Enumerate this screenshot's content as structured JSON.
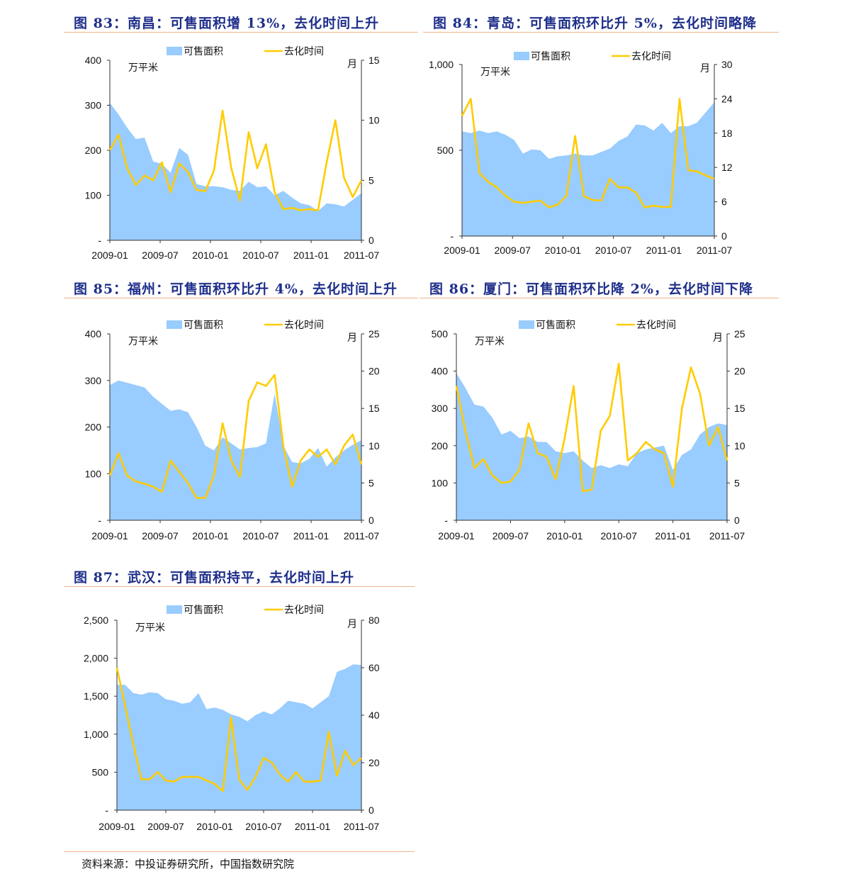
{
  "panels": [
    {
      "id": "p83",
      "title": "图 83：南昌：可售面积增 13%，去化时间上升"
    },
    {
      "id": "p84",
      "title": "图 84：青岛：可售面积环比升 5%，去化时间略降"
    },
    {
      "id": "p85",
      "title": "图 85：福州：可售面积环比升 4%，去化时间上升"
    },
    {
      "id": "p86",
      "title": "图 86：厦门：可售面积环比降 2%，去化时间下降"
    },
    {
      "id": "p87",
      "title": "图 87：武汉：可售面积持平，去化时间上升"
    }
  ],
  "source": "资料来源：中投证券研究所，中国指数研究院",
  "colors": {
    "area": "#99ccff",
    "line": "#ffcc00",
    "title": "#1f2f8a",
    "rule": "#f0b48c"
  },
  "chart_data": [
    {
      "type": "area+line",
      "x_ticks": [
        "2009-01",
        "2009-07",
        "2010-01",
        "2010-07",
        "2011-01",
        "2011-07"
      ],
      "series": [
        {
          "name": "可售面积",
          "type": "area",
          "axis": "left",
          "values": [
            305,
            280,
            250,
            225,
            228,
            175,
            170,
            150,
            205,
            190,
            125,
            120,
            120,
            118,
            112,
            110,
            130,
            118,
            120,
            100,
            110,
            95,
            82,
            78,
            65,
            82,
            80,
            75,
            90,
            105
          ]
        },
        {
          "name": "去化时间",
          "type": "line",
          "axis": "right",
          "values": [
            7.5,
            8.8,
            6,
            4.6,
            5.4,
            5,
            6.5,
            4,
            6.4,
            5.7,
            4.2,
            4.1,
            5.8,
            10.8,
            6,
            3.3,
            9,
            6,
            8,
            4,
            2.6,
            2.7,
            2.5,
            2.6,
            2.5,
            6.5,
            10,
            5.2,
            3.6,
            5
          ]
        }
      ],
      "left_axis": {
        "unit": "万平米",
        "ticks": [
          "-",
          "100",
          "200",
          "300",
          "400"
        ],
        "range": [
          0,
          400
        ]
      },
      "right_axis": {
        "unit": "月",
        "ticks": [
          "0",
          "5",
          "10",
          "15"
        ],
        "range": [
          0,
          15
        ]
      }
    },
    {
      "type": "area+line",
      "x_ticks": [
        "2009-01",
        "2009-07",
        "2010-01",
        "2010-07",
        "2011-01",
        "2011-07"
      ],
      "series": [
        {
          "name": "可售面积",
          "type": "area",
          "axis": "left",
          "values": [
            610,
            600,
            615,
            600,
            610,
            590,
            560,
            480,
            505,
            500,
            450,
            465,
            470,
            480,
            470,
            470,
            490,
            510,
            555,
            580,
            650,
            645,
            615,
            660,
            600,
            640,
            640,
            660,
            720,
            780
          ]
        },
        {
          "name": "去化时间",
          "type": "line",
          "axis": "right",
          "values": [
            21,
            24,
            11,
            9.5,
            8.5,
            7,
            6,
            5.8,
            6,
            6.2,
            5,
            5.5,
            7,
            17.5,
            7,
            6.3,
            6.2,
            10,
            8.5,
            8.5,
            7.6,
            5,
            5.3,
            5.1,
            5.1,
            24,
            11.5,
            11.3,
            10.6,
            10
          ]
        }
      ],
      "left_axis": {
        "unit": "万平米",
        "ticks": [
          "-",
          "500",
          "1,000"
        ],
        "range": [
          0,
          1000
        ]
      },
      "right_axis": {
        "unit": "月",
        "ticks": [
          "0",
          "6",
          "12",
          "18",
          "24",
          "30"
        ],
        "range": [
          0,
          30
        ]
      }
    },
    {
      "type": "area+line",
      "x_ticks": [
        "2009-01",
        "2009-07",
        "2010-01",
        "2010-07",
        "2011-01",
        "2011-07"
      ],
      "series": [
        {
          "name": "可售面积",
          "type": "area",
          "axis": "left",
          "values": [
            290,
            300,
            295,
            290,
            285,
            265,
            250,
            235,
            238,
            232,
            200,
            160,
            150,
            178,
            165,
            152,
            155,
            157,
            165,
            272,
            160,
            125,
            122,
            132,
            155,
            115,
            135,
            150,
            162,
            172
          ]
        },
        {
          "name": "去化时间",
          "type": "line",
          "axis": "right",
          "values": [
            6,
            9,
            6,
            5.2,
            4.9,
            4.5,
            3.8,
            8,
            6.5,
            5,
            3,
            3,
            6,
            13,
            8,
            5.8,
            16,
            18.5,
            18,
            19.5,
            10,
            4.5,
            8,
            9.5,
            8.5,
            9.5,
            7.5,
            10,
            11.5,
            7.5
          ]
        }
      ],
      "left_axis": {
        "unit": "万平米",
        "ticks": [
          "-",
          "100",
          "200",
          "300",
          "400"
        ],
        "range": [
          0,
          400
        ]
      },
      "right_axis": {
        "unit": "月",
        "ticks": [
          "0",
          "5",
          "10",
          "15",
          "20",
          "25"
        ],
        "range": [
          0,
          25
        ]
      }
    },
    {
      "type": "area+line",
      "x_ticks": [
        "2009-01",
        "2009-07",
        "2010-01",
        "2010-07",
        "2011-01",
        "2011-07"
      ],
      "series": [
        {
          "name": "可售面积",
          "type": "area",
          "axis": "left",
          "values": [
            395,
            355,
            310,
            305,
            275,
            230,
            240,
            220,
            225,
            210,
            210,
            185,
            180,
            185,
            160,
            140,
            148,
            140,
            150,
            145,
            180,
            190,
            195,
            200,
            135,
            175,
            190,
            230,
            250,
            260,
            255
          ]
        },
        {
          "name": "去化时间",
          "type": "line",
          "axis": "right",
          "values": [
            18,
            12,
            7,
            8.2,
            6,
            5,
            5.2,
            6.8,
            13,
            9,
            8.5,
            5.5,
            11,
            18,
            3.9,
            4.1,
            12,
            14,
            21,
            8,
            9,
            10.5,
            9.5,
            9,
            4.5,
            15,
            20.5,
            17,
            10,
            12.5,
            8
          ]
        }
      ],
      "left_axis": {
        "unit": "万平米",
        "ticks": [
          "-",
          "100",
          "200",
          "300",
          "400",
          "500"
        ],
        "range": [
          0,
          500
        ]
      },
      "right_axis": {
        "unit": "月",
        "ticks": [
          "0",
          "5",
          "10",
          "15",
          "20",
          "25"
        ],
        "range": [
          0,
          25
        ]
      }
    },
    {
      "type": "area+line",
      "x_ticks": [
        "2009-01",
        "2009-07",
        "2010-01",
        "2010-07",
        "2011-01",
        "2011-07"
      ],
      "series": [
        {
          "name": "可售面积",
          "type": "area",
          "axis": "left",
          "values": [
            1650,
            1650,
            1540,
            1520,
            1550,
            1540,
            1460,
            1440,
            1400,
            1420,
            1540,
            1330,
            1350,
            1320,
            1260,
            1230,
            1170,
            1250,
            1300,
            1260,
            1340,
            1440,
            1420,
            1400,
            1340,
            1420,
            1500,
            1820,
            1860,
            1920,
            1910
          ]
        },
        {
          "name": "去化时间",
          "type": "line",
          "axis": "right",
          "values": [
            60,
            44,
            28,
            13,
            13,
            16,
            12.5,
            12,
            14,
            14,
            14,
            12.5,
            11,
            8,
            39,
            13,
            8.5,
            14,
            22,
            20,
            15,
            12,
            16,
            12,
            12,
            12.5,
            33,
            14.5,
            25,
            19,
            22
          ]
        }
      ],
      "left_axis": {
        "unit": "万平米",
        "ticks": [
          "-",
          "500",
          "1,000",
          "1,500",
          "2,000",
          "2,500"
        ],
        "range": [
          0,
          2500
        ]
      },
      "right_axis": {
        "unit": "月",
        "ticks": [
          "0",
          "20",
          "40",
          "60",
          "80"
        ],
        "range": [
          0,
          80
        ]
      }
    }
  ]
}
